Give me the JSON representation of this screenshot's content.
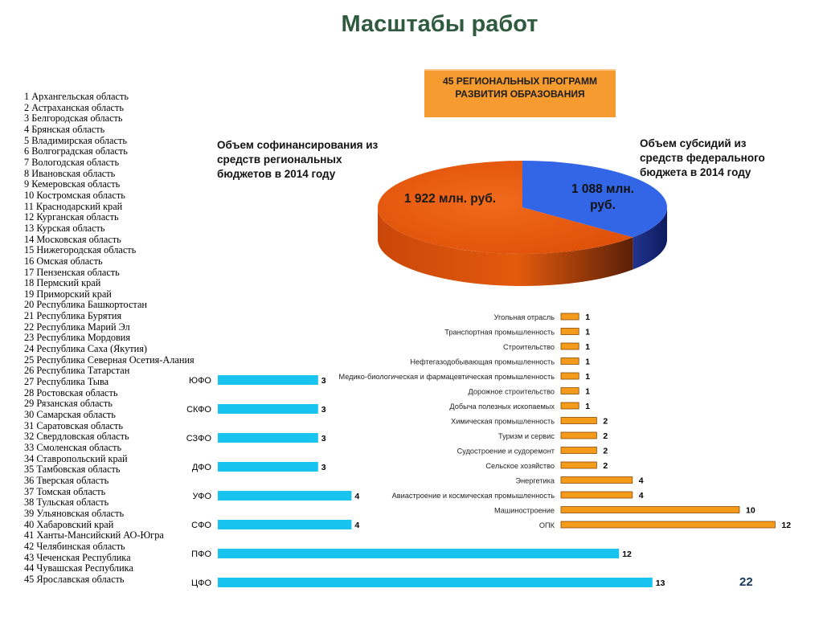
{
  "page": {
    "title": "Масштабы работ",
    "page_number": "22"
  },
  "regions": [
    "1 Архангельская область",
    "2 Астраханская область",
    "3 Белгородская область",
    "4 Брянская область",
    "5 Владимирская область",
    "6 Волгоградская область",
    "7 Вологодская область",
    "8 Ивановская область",
    "9 Кемеровская область",
    "10 Костромская область",
    "11 Краснодарский край",
    "12 Курганская область",
    "13 Курская область",
    "14 Московская область",
    "15 Нижегородская область",
    "16 Омская область",
    "17 Пензенская область",
    "18 Пермский край",
    "19 Приморский край",
    "20 Республика Башкортостан",
    "21 Республика Бурятия",
    "22 Республика Марий Эл",
    "23 Республика Мордовия",
    "24 Республика Саха (Якутия)",
    "25 Республика Северная Осетия-Алания",
    "26 Республика Татарстан",
    "27 Республика Тыва",
    "28 Ростовская область",
    "29 Рязанская область",
    "30 Самарская область",
    "31 Саратовская область",
    "32 Свердловская область",
    "33 Смоленская область",
    "34 Ставропольский край",
    "35 Тамбовская область",
    "36 Тверская область",
    "37 Томская область",
    "38 Тульская область",
    "39 Ульяновская область",
    "40 Хабаровский край",
    "41 Ханты-Мансийский АО-Югра",
    "42 Челябинская область",
    "43 Чеченская Республика",
    "44 Чувашская Республика",
    "45 Ярославская область"
  ],
  "badge": {
    "text": "45 РЕГИОНАЛЬНЫХ ПРОГРАММ РАЗВИТИЯ ОБРАЗОВАНИЯ"
  },
  "notes": {
    "left": "Объем софинансирования из средств региональных бюджетов в 2014 году",
    "right": "Объем субсидий из средств федерального бюджета в 2014 году"
  },
  "colors": {
    "regional": "#e8580c",
    "federal": "#3366e6",
    "fo_bar": "#19c3f0",
    "industry_bar": "#f59b1c",
    "title": "#2f5a3f"
  },
  "chart_data": [
    {
      "type": "pie",
      "slices": [
        {
          "label": "1 922 млн. руб.",
          "value": 1922
        },
        {
          "label": "1 088 млн. руб.",
          "value": 1088
        }
      ]
    },
    {
      "type": "bar",
      "orientation": "horizontal",
      "categories": [
        "ЮФО",
        "СКФО",
        "СЗФО",
        "ДФО",
        "УФО",
        "СФО",
        "ПФО",
        "ЦФО"
      ],
      "values": [
        3,
        3,
        3,
        3,
        4,
        4,
        12,
        13
      ]
    },
    {
      "type": "bar",
      "orientation": "horizontal",
      "categories": [
        "Угольная отрасль",
        "Транспортная промышленность",
        "Строительство",
        "Нефтегазодобывающая промышленность",
        "Медико-биологическая и фармацевтическая промышленность",
        "Дорожное строительство",
        "Добыча полезных ископаемых",
        "Химическая промышленность",
        "Туризм и сервис",
        "Судостроение и судоремонт",
        "Сельское хозяйство",
        "Энергетика",
        "Авиастроение и космическая промышленность",
        "Машиностроение",
        "ОПК"
      ],
      "values": [
        1,
        1,
        1,
        1,
        1,
        1,
        1,
        2,
        2,
        2,
        2,
        4,
        4,
        10,
        12
      ]
    }
  ]
}
